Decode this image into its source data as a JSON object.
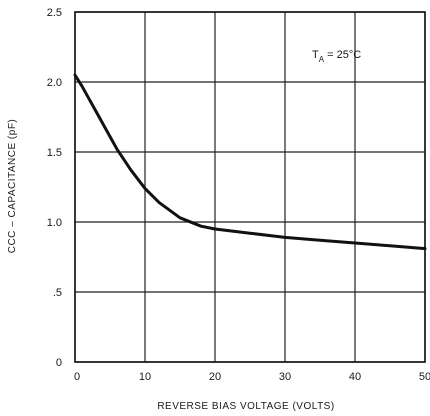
{
  "chart_data": {
    "type": "line",
    "title": "",
    "xlabel": "REVERSE BIAS VOLTAGE (VOLTS)",
    "ylabel": "CCC – CAPACITANCE (pF)",
    "xlim": [
      0,
      50
    ],
    "ylim": [
      0,
      2.5
    ],
    "grid": true,
    "x_ticks": [
      0,
      10,
      20,
      30,
      40,
      50
    ],
    "x_tick_labels": [
      "0",
      "10",
      "20",
      "30",
      "40",
      "50"
    ],
    "y_ticks": [
      0,
      0.5,
      1.0,
      1.5,
      2.0,
      2.5
    ],
    "y_tick_labels": [
      "0",
      ".5",
      "1.0",
      "1.5",
      "2.0",
      "2.5"
    ],
    "annotation": {
      "main": "T",
      "sub": "A",
      "rest": " = 25°C"
    },
    "series": [
      {
        "x": [
          0,
          1,
          2,
          3,
          4,
          5,
          6,
          8,
          10,
          12,
          15,
          18,
          20,
          25,
          30,
          35,
          40,
          45,
          50
        ],
        "y": [
          2.05,
          1.97,
          1.88,
          1.79,
          1.7,
          1.61,
          1.52,
          1.37,
          1.24,
          1.14,
          1.03,
          0.97,
          0.95,
          0.92,
          0.89,
          0.87,
          0.85,
          0.83,
          0.81
        ]
      }
    ]
  }
}
